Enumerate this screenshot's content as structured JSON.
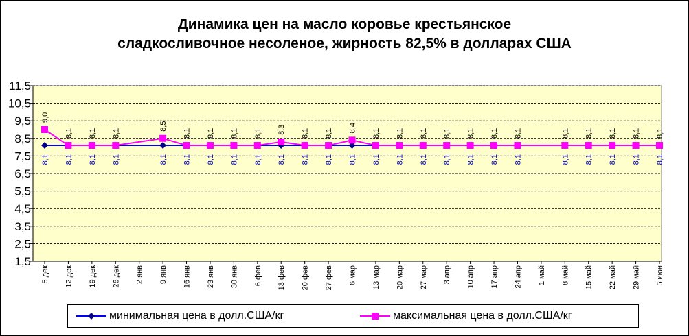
{
  "chart_data": {
    "type": "line",
    "title_line1": "Динамика цен на масло коровье крестьянское",
    "title_line2": "сладкосливочное несоленое, жирность 82,5%  в долларах США",
    "categories": [
      "5 дек",
      "12 дек",
      "19 дек",
      "26 дек",
      "2 янв",
      "9 янв",
      "16 янв",
      "23 янв",
      "30 янв",
      "6 фев",
      "13 фев",
      "20 фев",
      "27 фев",
      "6 мар",
      "13 мар",
      "20 мар",
      "27 мар",
      "3 апр",
      "10 апр",
      "17 апр",
      "24 апр",
      "1 май",
      "8 май",
      "15 май",
      "22 май",
      "29 май",
      "5 июн"
    ],
    "ylim": [
      1.5,
      11.5
    ],
    "yticks": [
      "11,5",
      "10,5",
      "9,5",
      "8,5",
      "7,5",
      "6,5",
      "5,5",
      "4,5",
      "3,5",
      "2,5",
      "1,5"
    ],
    "ytick_values": [
      11.5,
      10.5,
      9.5,
      8.5,
      7.5,
      6.5,
      5.5,
      4.5,
      3.5,
      2.5,
      1.5
    ],
    "grid": true,
    "legend_position": "bottom",
    "series": [
      {
        "name": "минимальная  цена  в долл.США/кг",
        "color": "#00008b",
        "line_color": "#0000ff",
        "marker": "diamond",
        "values": [
          8.1,
          8.1,
          8.1,
          8.1,
          null,
          8.1,
          8.1,
          8.1,
          8.1,
          8.1,
          8.1,
          8.1,
          8.1,
          8.1,
          8.1,
          8.1,
          8.1,
          8.1,
          8.1,
          8.1,
          8.1,
          null,
          8.1,
          8.1,
          8.1,
          8.1,
          8.1
        ],
        "labels": [
          "8,1",
          "8,1",
          "8,1",
          "8,1",
          "",
          "8,1",
          "8,1",
          "8,1",
          "8,1",
          "8,1",
          "8,1",
          "8,1",
          "8,1",
          "8,1",
          "8,1",
          "8,1",
          "8,1",
          "8,1",
          "8,1",
          "8,1",
          "8,1",
          "",
          "8,1",
          "8,1",
          "8,1",
          "8,1",
          "8,1"
        ]
      },
      {
        "name": "максимальная  цена  в долл.США/кг",
        "color": "#ff00ff",
        "line_color": "#ff00ff",
        "marker": "square",
        "values": [
          9.0,
          8.1,
          8.1,
          8.1,
          null,
          8.5,
          8.1,
          8.1,
          8.1,
          8.1,
          8.3,
          8.1,
          8.1,
          8.4,
          8.1,
          8.1,
          8.1,
          8.1,
          8.1,
          8.1,
          8.1,
          null,
          8.1,
          8.1,
          8.1,
          8.1,
          8.1
        ],
        "labels": [
          "9,0",
          "8,1",
          "8,1",
          "8,1",
          "",
          "8,5",
          "8,1",
          "8,1",
          "8,1",
          "8,1",
          "8,3",
          "8,1",
          "8,1",
          "8,4",
          "8,1",
          "8,1",
          "8,1",
          "8,1",
          "8,1",
          "8,1",
          "8,1",
          "",
          "8,1",
          "8,1",
          "8,1",
          "8,1",
          "8,1"
        ]
      }
    ],
    "colors": {
      "plot_background": "#ffffcc",
      "grid": "#000000",
      "label_min": "#0000cc",
      "label_max": "#000000"
    }
  }
}
